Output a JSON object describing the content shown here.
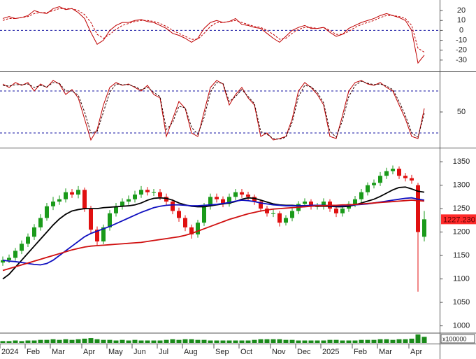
{
  "chart_data": [
    {
      "type": "line",
      "ylim": [
        -40,
        30
      ],
      "yticks": [
        20,
        10,
        0,
        -10,
        -20,
        -30
      ],
      "hlines": [
        0
      ],
      "hline_color": "#1010a0",
      "series": [
        {
          "color": "#c00000",
          "dashed": false,
          "values": [
            12,
            14,
            12,
            13,
            15,
            20,
            18,
            17,
            22,
            24,
            21,
            22,
            18,
            12,
            -2,
            -14,
            -10,
            0,
            5,
            8,
            8,
            10,
            11,
            9,
            8,
            5,
            2,
            -3,
            -5,
            -8,
            -12,
            -8,
            2,
            8,
            10,
            8,
            9,
            12,
            6,
            5,
            3,
            2,
            -3,
            -8,
            -12,
            -6,
            0,
            3,
            5,
            2,
            2,
            3,
            -2,
            -6,
            -4,
            2,
            5,
            8,
            10,
            12,
            15,
            17,
            15,
            13,
            10,
            0,
            -33,
            -25
          ]
        },
        {
          "color": "#c00000",
          "dashed": true,
          "values": [
            10,
            12,
            12,
            13,
            14,
            17,
            18,
            18,
            20,
            22,
            22,
            22,
            20,
            16,
            8,
            -4,
            -8,
            -4,
            1,
            5,
            7,
            9,
            10,
            10,
            9,
            7,
            4,
            0,
            -3,
            -6,
            -9,
            -9,
            -3,
            4,
            8,
            8,
            9,
            10,
            8,
            6,
            4,
            3,
            0,
            -4,
            -9,
            -8,
            -3,
            1,
            3,
            3,
            2,
            3,
            0,
            -4,
            -4,
            -1,
            3,
            6,
            8,
            10,
            13,
            15,
            15,
            14,
            12,
            5,
            -18,
            -22
          ]
        }
      ]
    },
    {
      "type": "line",
      "ylim": [
        0,
        105
      ],
      "yticks": [
        50
      ],
      "hlines": [
        20,
        80
      ],
      "hline_color": "#1010a0",
      "series": [
        {
          "color": "#c00000",
          "dashed": false,
          "values": [
            90,
            85,
            92,
            88,
            92,
            80,
            90,
            85,
            95,
            90,
            75,
            82,
            70,
            40,
            10,
            25,
            60,
            85,
            92,
            88,
            90,
            85,
            80,
            88,
            75,
            70,
            15,
            40,
            65,
            55,
            20,
            15,
            50,
            85,
            95,
            90,
            60,
            75,
            85,
            70,
            60,
            15,
            20,
            10,
            12,
            15,
            40,
            80,
            92,
            85,
            75,
            60,
            15,
            12,
            45,
            80,
            92,
            95,
            90,
            88,
            92,
            85,
            80,
            60,
            40,
            15,
            12,
            55
          ]
        },
        {
          "color": "#300000",
          "dashed": true,
          "values": [
            88,
            87,
            89,
            89,
            90,
            85,
            88,
            86,
            92,
            91,
            80,
            80,
            74,
            50,
            20,
            22,
            50,
            78,
            90,
            89,
            89,
            86,
            82,
            85,
            78,
            72,
            25,
            35,
            58,
            56,
            28,
            18,
            42,
            78,
            92,
            91,
            65,
            72,
            82,
            72,
            62,
            22,
            18,
            12,
            11,
            14,
            35,
            72,
            88,
            86,
            78,
            63,
            22,
            14,
            38,
            72,
            88,
            94,
            91,
            89,
            90,
            87,
            82,
            65,
            45,
            20,
            14,
            48
          ]
        }
      ]
    },
    {
      "type": "candlestick",
      "ylim": [
        986,
        1377
      ],
      "yticks": [
        1350,
        1300,
        1250,
        1200,
        1150,
        1100,
        1050,
        1000
      ],
      "up_color": "#1a9a1a",
      "down_color": "#e01010",
      "categories": [
        "2024",
        null,
        null,
        null,
        "Feb",
        null,
        null,
        null,
        "Mar",
        null,
        null,
        null,
        null,
        "Apr",
        null,
        null,
        null,
        "May",
        null,
        null,
        null,
        "Jun",
        null,
        null,
        null,
        "Jul",
        null,
        null,
        null,
        "Aug",
        null,
        null,
        null,
        null,
        "Sep",
        null,
        null,
        null,
        "Oct",
        null,
        null,
        null,
        null,
        "Nov",
        null,
        null,
        null,
        "Dec",
        null,
        null,
        null,
        "2025",
        null,
        null,
        null,
        null,
        "Feb",
        null,
        null,
        null,
        "Mar",
        null,
        null,
        null,
        null,
        "Apr",
        null,
        null
      ],
      "open": [
        1135,
        1140,
        1145,
        1160,
        1175,
        1190,
        1210,
        1230,
        1255,
        1265,
        1270,
        1285,
        1280,
        1290,
        1250,
        1205,
        1180,
        1210,
        1240,
        1255,
        1265,
        1270,
        1280,
        1290,
        1285,
        1285,
        1275,
        1265,
        1245,
        1230,
        1210,
        1195,
        1220,
        1255,
        1275,
        1270,
        1260,
        1275,
        1285,
        1280,
        1275,
        1265,
        1250,
        1240,
        1240,
        1220,
        1230,
        1245,
        1260,
        1265,
        1255,
        1255,
        1265,
        1250,
        1240,
        1250,
        1260,
        1270,
        1285,
        1300,
        1305,
        1320,
        1330,
        1335,
        1320,
        1315,
        1300,
        1190
      ],
      "high": [
        1148,
        1152,
        1166,
        1182,
        1197,
        1217,
        1238,
        1262,
        1275,
        1278,
        1293,
        1292,
        1298,
        1295,
        1256,
        1212,
        1216,
        1247,
        1262,
        1272,
        1278,
        1288,
        1298,
        1296,
        1292,
        1292,
        1282,
        1270,
        1252,
        1236,
        1216,
        1226,
        1262,
        1282,
        1282,
        1276,
        1282,
        1292,
        1292,
        1286,
        1280,
        1270,
        1256,
        1248,
        1245,
        1236,
        1252,
        1266,
        1272,
        1270,
        1262,
        1272,
        1270,
        1256,
        1256,
        1266,
        1277,
        1292,
        1306,
        1312,
        1328,
        1337,
        1342,
        1340,
        1326,
        1322,
        1305,
        1245
      ],
      "low": [
        1128,
        1134,
        1139,
        1153,
        1168,
        1183,
        1203,
        1224,
        1247,
        1258,
        1263,
        1273,
        1272,
        1243,
        1198,
        1172,
        1174,
        1203,
        1233,
        1248,
        1258,
        1263,
        1273,
        1278,
        1277,
        1268,
        1258,
        1238,
        1222,
        1202,
        1186,
        1188,
        1213,
        1248,
        1263,
        1253,
        1254,
        1268,
        1273,
        1268,
        1258,
        1243,
        1233,
        1232,
        1212,
        1214,
        1223,
        1238,
        1253,
        1248,
        1248,
        1248,
        1243,
        1232,
        1233,
        1243,
        1253,
        1263,
        1278,
        1293,
        1298,
        1313,
        1323,
        1313,
        1308,
        1303,
        1073,
        1180
      ],
      "close": [
        1140,
        1145,
        1160,
        1175,
        1190,
        1210,
        1230,
        1255,
        1265,
        1270,
        1285,
        1280,
        1290,
        1250,
        1205,
        1180,
        1210,
        1240,
        1255,
        1265,
        1270,
        1280,
        1290,
        1285,
        1285,
        1275,
        1265,
        1245,
        1230,
        1210,
        1195,
        1220,
        1255,
        1275,
        1270,
        1260,
        1275,
        1285,
        1280,
        1275,
        1265,
        1250,
        1240,
        1240,
        1220,
        1230,
        1245,
        1260,
        1265,
        1255,
        1255,
        1265,
        1250,
        1240,
        1250,
        1260,
        1270,
        1285,
        1300,
        1305,
        1320,
        1330,
        1335,
        1320,
        1315,
        1310,
        1200,
        1227.23
      ],
      "price_tag": {
        "value": 1227.23,
        "label": "1227.230"
      },
      "series": [
        {
          "color": "#000000",
          "values": [
            1100,
            1110,
            1125,
            1140,
            1155,
            1170,
            1185,
            1200,
            1215,
            1228,
            1238,
            1245,
            1248,
            1250,
            1250,
            1250,
            1252,
            1253,
            1254,
            1255,
            1256,
            1258,
            1262,
            1268,
            1272,
            1273,
            1272,
            1268,
            1262,
            1258,
            1255,
            1254,
            1254,
            1256,
            1258,
            1260,
            1262,
            1265,
            1270,
            1273,
            1272,
            1268,
            1264,
            1260,
            1258,
            1257,
            1257,
            1256,
            1256,
            1256,
            1255,
            1255,
            1255,
            1254,
            1254,
            1255,
            1258,
            1262,
            1266,
            1270,
            1276,
            1283,
            1290,
            1295,
            1296,
            1292,
            1287,
            1285
          ]
        },
        {
          "color": "#1010c0",
          "values": [
            1140,
            1138,
            1137,
            1135,
            1133,
            1131,
            1130,
            1133,
            1140,
            1150,
            1160,
            1170,
            1180,
            1190,
            1197,
            1202,
            1207,
            1212,
            1218,
            1224,
            1230,
            1236,
            1242,
            1247,
            1252,
            1255,
            1257,
            1258,
            1258,
            1257,
            1256,
            1256,
            1257,
            1258,
            1259,
            1261,
            1263,
            1266,
            1268,
            1267,
            1265,
            1262,
            1260,
            1258,
            1257,
            1256,
            1256,
            1256,
            1256,
            1257,
            1257,
            1257,
            1256,
            1256,
            1256,
            1257,
            1258,
            1259,
            1260,
            1262,
            1264,
            1266,
            1268,
            1270,
            1272,
            1273,
            1270,
            1268
          ]
        },
        {
          "color": "#d01010",
          "values": [
            1118,
            1122,
            1126,
            1130,
            1134,
            1138,
            1142,
            1146,
            1150,
            1154,
            1158,
            1162,
            1165,
            1168,
            1170,
            1171,
            1172,
            1173,
            1174,
            1175,
            1176,
            1177,
            1178,
            1180,
            1182,
            1184,
            1186,
            1188,
            1190,
            1193,
            1197,
            1202,
            1207,
            1212,
            1217,
            1222,
            1227,
            1231,
            1235,
            1239,
            1242,
            1245,
            1247,
            1249,
            1250,
            1251,
            1252,
            1253,
            1254,
            1255,
            1256,
            1256,
            1257,
            1257,
            1258,
            1258,
            1259,
            1260,
            1261,
            1262,
            1263,
            1264,
            1265,
            1266,
            1267,
            1268,
            1267,
            1266
          ]
        }
      ]
    },
    {
      "type": "bar",
      "ylim": [
        0,
        15
      ],
      "color": "#1a8a1a",
      "unit_label": "x100000",
      "values": [
        3,
        3,
        4,
        3,
        4,
        4,
        5,
        5,
        6,
        5,
        6,
        5,
        6,
        7,
        8,
        6,
        5,
        5,
        4,
        5,
        4,
        5,
        4,
        4,
        4,
        4,
        5,
        6,
        5,
        6,
        6,
        5,
        5,
        4,
        4,
        4,
        4,
        4,
        4,
        4,
        5,
        6,
        6,
        6,
        6,
        5,
        5,
        4,
        4,
        4,
        4,
        4,
        5,
        5,
        4,
        4,
        4,
        5,
        5,
        5,
        6,
        6,
        5,
        6,
        6,
        7,
        14,
        10
      ]
    }
  ]
}
